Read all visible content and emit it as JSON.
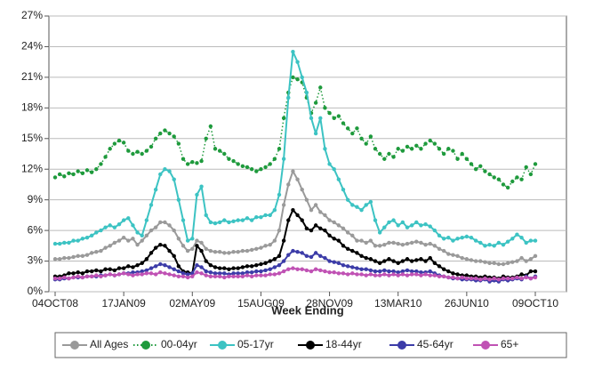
{
  "chart_data": {
    "type": "line",
    "x_label": "Week Ending",
    "categories": [
      "04OCT08",
      null,
      null,
      null,
      null,
      null,
      null,
      null,
      null,
      null,
      null,
      null,
      null,
      null,
      null,
      "17JAN09",
      null,
      null,
      null,
      null,
      null,
      null,
      null,
      null,
      null,
      null,
      null,
      null,
      null,
      null,
      "02MAY09",
      null,
      null,
      null,
      null,
      null,
      null,
      null,
      null,
      null,
      null,
      null,
      null,
      null,
      null,
      "15AUG09",
      null,
      null,
      null,
      null,
      null,
      null,
      null,
      null,
      null,
      null,
      null,
      null,
      null,
      null,
      "28NOV09",
      null,
      null,
      null,
      null,
      null,
      null,
      null,
      null,
      null,
      null,
      null,
      null,
      null,
      null,
      "13MAR10",
      null,
      null,
      null,
      null,
      null,
      null,
      null,
      null,
      null,
      null,
      null,
      null,
      null,
      null,
      "26JUN10",
      null,
      null,
      null,
      null,
      null,
      null,
      null,
      null,
      null,
      null,
      null,
      null,
      null,
      null,
      "09OCT10"
    ],
    "ylim": [
      0,
      27
    ],
    "yticks": [
      {
        "value": 0,
        "label": "0%"
      },
      {
        "value": 3,
        "label": "3%"
      },
      {
        "value": 6,
        "label": "6%"
      },
      {
        "value": 9,
        "label": "9%"
      },
      {
        "value": 12,
        "label": "12%"
      },
      {
        "value": 15,
        "label": "15%"
      },
      {
        "value": 18,
        "label": "18%"
      },
      {
        "value": 21,
        "label": "21%"
      },
      {
        "value": 24,
        "label": "24%"
      },
      {
        "value": 27,
        "label": "27%"
      }
    ],
    "grid": true,
    "legend": "bottom",
    "series": [
      {
        "name": "All Ages",
        "color": "#9a9a9a",
        "line_style": "solid",
        "values": [
          3.2,
          3.2,
          3.3,
          3.3,
          3.4,
          3.5,
          3.5,
          3.6,
          3.8,
          3.9,
          4.0,
          4.3,
          4.5,
          4.8,
          5.0,
          5.3,
          5.0,
          5.2,
          4.6,
          5.0,
          5.5,
          6.0,
          6.3,
          6.8,
          6.8,
          6.5,
          6.0,
          5.2,
          4.5,
          4.0,
          4.2,
          5.0,
          4.8,
          4.2,
          4.0,
          3.9,
          3.9,
          3.8,
          3.8,
          3.9,
          3.9,
          4.0,
          4.0,
          4.1,
          4.2,
          4.3,
          4.5,
          4.6,
          5.0,
          6.0,
          8.5,
          10.5,
          11.8,
          11.0,
          10.0,
          9.0,
          8.0,
          8.5,
          7.8,
          7.5,
          7.0,
          6.8,
          6.5,
          6.2,
          5.8,
          5.5,
          5.0,
          5.0,
          4.8,
          5.0,
          4.5,
          4.5,
          4.6,
          4.8,
          4.8,
          4.7,
          4.6,
          4.7,
          4.8,
          4.9,
          4.8,
          4.6,
          4.7,
          4.5,
          4.2,
          4.0,
          3.7,
          3.6,
          3.5,
          3.3,
          3.2,
          3.1,
          3.0,
          3.0,
          2.9,
          2.8,
          2.8,
          2.7,
          2.7,
          2.8,
          2.9,
          3.0,
          3.3,
          3.0,
          3.2,
          3.5
        ]
      },
      {
        "name": "00-04yr",
        "color": "#1e9a3c",
        "line_style": "dotted",
        "values": [
          11.2,
          11.5,
          11.3,
          11.6,
          11.5,
          11.8,
          11.6,
          11.9,
          11.7,
          12.0,
          12.5,
          13.2,
          14.0,
          14.5,
          14.8,
          14.6,
          13.8,
          13.5,
          13.7,
          13.5,
          13.8,
          14.2,
          15.0,
          15.5,
          15.8,
          15.5,
          15.2,
          14.5,
          13.0,
          12.5,
          12.7,
          12.6,
          12.8,
          15.0,
          16.2,
          14.0,
          13.8,
          13.5,
          13.0,
          12.8,
          12.5,
          12.3,
          12.2,
          12.0,
          11.8,
          12.0,
          12.2,
          12.5,
          13.0,
          14.0,
          17.0,
          19.5,
          21.0,
          20.8,
          20.5,
          19.0,
          17.5,
          18.5,
          20.0,
          18.0,
          17.5,
          17.0,
          17.2,
          16.5,
          16.0,
          15.5,
          16.0,
          15.0,
          14.5,
          15.2,
          14.0,
          13.5,
          13.0,
          13.5,
          13.2,
          14.0,
          13.8,
          14.2,
          14.0,
          14.3,
          14.0,
          14.5,
          14.8,
          14.5,
          14.0,
          13.5,
          14.0,
          13.8,
          13.0,
          13.5,
          13.0,
          12.5,
          12.0,
          12.3,
          11.8,
          11.5,
          11.2,
          11.0,
          10.5,
          10.2,
          10.8,
          11.2,
          11.0,
          12.2,
          11.5,
          12.5
        ]
      },
      {
        "name": "05-17yr",
        "color": "#3cc3c3",
        "line_style": "solid",
        "values": [
          4.7,
          4.7,
          4.8,
          4.8,
          5.0,
          5.0,
          5.2,
          5.3,
          5.5,
          5.8,
          6.0,
          6.3,
          6.5,
          6.3,
          6.6,
          7.0,
          7.2,
          6.5,
          5.8,
          5.5,
          7.0,
          8.5,
          10.0,
          11.5,
          12.0,
          11.8,
          11.0,
          9.0,
          7.0,
          5.0,
          5.2,
          9.5,
          10.3,
          7.5,
          6.8,
          6.7,
          6.8,
          7.0,
          6.8,
          6.9,
          7.0,
          7.0,
          7.2,
          7.0,
          7.3,
          7.3,
          7.5,
          7.5,
          8.0,
          9.5,
          13.0,
          19.0,
          23.5,
          22.5,
          21.0,
          19.5,
          17.0,
          15.5,
          17.0,
          14.0,
          12.5,
          12.0,
          11.0,
          10.0,
          9.0,
          8.5,
          8.3,
          8.0,
          8.5,
          8.8,
          7.0,
          5.8,
          6.3,
          6.8,
          7.0,
          6.5,
          6.8,
          6.3,
          6.5,
          6.8,
          6.5,
          6.6,
          6.4,
          6.0,
          5.5,
          5.2,
          5.3,
          5.0,
          5.2,
          5.3,
          5.4,
          5.3,
          5.0,
          4.8,
          4.5,
          4.6,
          4.5,
          4.8,
          4.6,
          4.9,
          5.2,
          5.6,
          5.3,
          4.8,
          5.0,
          5.0
        ]
      },
      {
        "name": "18-44yr",
        "color": "#000000",
        "line_style": "solid",
        "values": [
          1.5,
          1.5,
          1.6,
          1.8,
          1.8,
          1.9,
          1.8,
          2.0,
          2.0,
          2.1,
          2.0,
          2.2,
          2.2,
          2.1,
          2.3,
          2.3,
          2.5,
          2.4,
          2.6,
          2.8,
          3.2,
          3.8,
          4.3,
          4.6,
          4.5,
          4.0,
          3.5,
          2.5,
          2.0,
          1.9,
          1.8,
          4.5,
          4.0,
          3.0,
          2.6,
          2.4,
          2.3,
          2.3,
          2.2,
          2.3,
          2.3,
          2.4,
          2.5,
          2.5,
          2.6,
          2.7,
          2.8,
          3.0,
          3.2,
          3.5,
          5.0,
          7.0,
          8.0,
          7.5,
          7.0,
          6.2,
          6.0,
          6.5,
          6.2,
          6.0,
          5.5,
          5.2,
          5.0,
          4.5,
          4.2,
          4.0,
          3.8,
          3.5,
          3.3,
          3.2,
          3.0,
          2.8,
          3.0,
          3.2,
          3.0,
          2.8,
          3.0,
          3.2,
          3.0,
          3.1,
          3.2,
          3.0,
          3.3,
          2.8,
          2.5,
          2.2,
          2.0,
          1.8,
          1.7,
          1.6,
          1.6,
          1.5,
          1.5,
          1.4,
          1.5,
          1.4,
          1.4,
          1.3,
          1.5,
          1.4,
          1.4,
          1.5,
          1.7,
          1.6,
          2.0,
          2.0
        ]
      },
      {
        "name": "45-64yr",
        "color": "#3c3ca8",
        "line_style": "solid",
        "values": [
          1.2,
          1.2,
          1.3,
          1.3,
          1.4,
          1.4,
          1.4,
          1.5,
          1.5,
          1.5,
          1.6,
          1.6,
          1.7,
          1.6,
          1.7,
          1.8,
          1.8,
          1.9,
          1.9,
          2.0,
          2.1,
          2.3,
          2.5,
          2.7,
          2.6,
          2.4,
          2.2,
          2.0,
          1.8,
          1.7,
          1.8,
          2.6,
          2.4,
          2.0,
          1.9,
          1.8,
          1.8,
          1.8,
          1.7,
          1.8,
          1.8,
          1.8,
          1.9,
          1.9,
          2.0,
          2.0,
          2.1,
          2.2,
          2.4,
          2.6,
          3.0,
          3.6,
          4.0,
          3.9,
          3.8,
          3.5,
          3.4,
          3.8,
          3.5,
          3.3,
          3.0,
          2.9,
          2.8,
          2.6,
          2.5,
          2.4,
          2.3,
          2.2,
          2.2,
          2.1,
          2.0,
          2.0,
          2.1,
          2.0,
          2.0,
          1.9,
          2.0,
          2.1,
          2.0,
          2.0,
          1.9,
          1.9,
          2.0,
          1.8,
          1.6,
          1.5,
          1.4,
          1.3,
          1.3,
          1.2,
          1.2,
          1.2,
          1.1,
          1.1,
          1.2,
          1.0,
          1.1,
          1.0,
          1.2,
          1.1,
          1.2,
          1.3,
          1.2,
          1.5,
          1.3,
          1.5
        ]
      },
      {
        "name": "65+",
        "color": "#c052b4",
        "line_style": "solid",
        "values": [
          1.3,
          1.3,
          1.4,
          1.3,
          1.4,
          1.5,
          1.4,
          1.5,
          1.5,
          1.6,
          1.5,
          1.6,
          1.7,
          1.6,
          1.7,
          1.8,
          1.7,
          1.6,
          1.7,
          1.7,
          1.8,
          1.8,
          1.7,
          1.9,
          1.8,
          1.7,
          1.6,
          1.5,
          1.5,
          1.4,
          1.5,
          1.9,
          1.8,
          1.6,
          1.5,
          1.5,
          1.5,
          1.4,
          1.5,
          1.5,
          1.5,
          1.5,
          1.6,
          1.5,
          1.6,
          1.6,
          1.6,
          1.7,
          1.7,
          1.8,
          2.0,
          2.2,
          2.3,
          2.2,
          2.2,
          2.1,
          2.0,
          2.2,
          2.1,
          2.0,
          1.9,
          1.9,
          1.8,
          1.8,
          1.7,
          1.8,
          1.7,
          1.7,
          1.6,
          1.7,
          1.6,
          1.6,
          1.7,
          1.6,
          1.7,
          1.6,
          1.7,
          1.6,
          1.7,
          1.7,
          1.6,
          1.7,
          1.6,
          1.6,
          1.5,
          1.5,
          1.4,
          1.4,
          1.3,
          1.4,
          1.3,
          1.3,
          1.3,
          1.2,
          1.3,
          1.2,
          1.3,
          1.2,
          1.3,
          1.3,
          1.3,
          1.4,
          1.3,
          1.4,
          1.3,
          1.4
        ]
      }
    ]
  }
}
